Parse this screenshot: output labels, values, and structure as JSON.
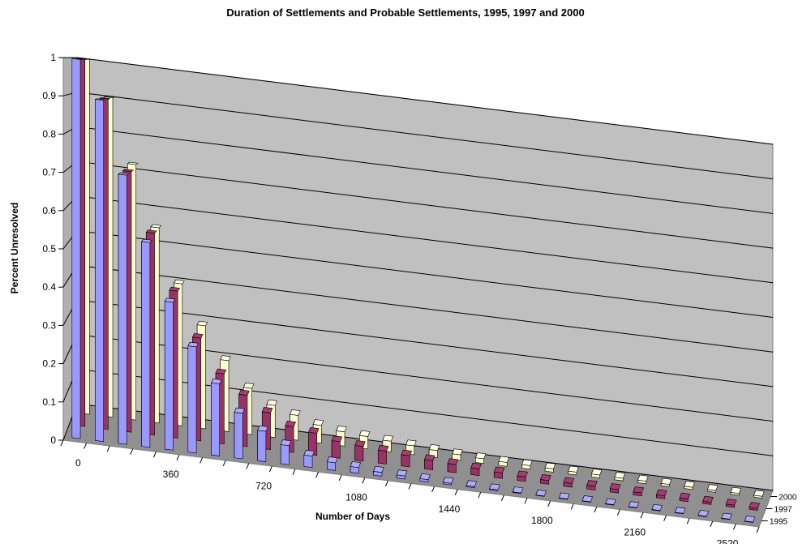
{
  "chart_data": {
    "type": "bar",
    "title": "Duration of Settlements and Probable Settlements, 1995, 1997 and 2000",
    "xlabel": "Number of Days",
    "ylabel": "Percent Unresolved",
    "ylim": [
      0,
      1
    ],
    "y_ticks": [
      "0",
      "0.1",
      "0.2",
      "0.3",
      "0.4",
      "0.5",
      "0.6",
      "0.7",
      "0.8",
      "0.9",
      "1"
    ],
    "x_tick_labels": [
      "0",
      "360",
      "720",
      "1080",
      "1440",
      "1800",
      "2160",
      "2520"
    ],
    "x_tick_every": 4,
    "x": [
      0,
      90,
      180,
      270,
      360,
      450,
      540,
      630,
      720,
      810,
      900,
      990,
      1080,
      1170,
      1260,
      1350,
      1440,
      1530,
      1620,
      1710,
      1800,
      1890,
      1980,
      2070,
      2160,
      2250,
      2340,
      2430,
      2520,
      2610
    ],
    "grid": true,
    "three_d": true,
    "legend": "depth axis, lower-right",
    "series": [
      {
        "name": "1995",
        "color": "#9999ff",
        "values": [
          1.0,
          0.9,
          0.71,
          0.54,
          0.39,
          0.28,
          0.19,
          0.12,
          0.08,
          0.05,
          0.03,
          0.02,
          0.015,
          0.01,
          0.008,
          0.006,
          0.004,
          0.003,
          0.002,
          0.0015,
          0.001,
          0.001,
          0.001,
          0.001,
          0.001,
          0.001,
          0.001,
          0.001,
          0.001,
          0.001
        ]
      },
      {
        "name": "1997",
        "color": "#993366",
        "values": [
          1.0,
          0.9,
          0.71,
          0.55,
          0.4,
          0.28,
          0.19,
          0.14,
          0.1,
          0.07,
          0.06,
          0.045,
          0.04,
          0.035,
          0.03,
          0.025,
          0.022,
          0.018,
          0.015,
          0.012,
          0.01,
          0.01,
          0.01,
          0.009,
          0.008,
          0.008,
          0.007,
          0.006,
          0.006,
          0.005
        ]
      },
      {
        "name": "2000",
        "color": "#ffffcc",
        "values": [
          1.0,
          0.9,
          0.72,
          0.55,
          0.4,
          0.29,
          0.2,
          0.13,
          0.09,
          0.07,
          0.05,
          0.04,
          0.035,
          0.03,
          0.025,
          0.02,
          0.016,
          0.013,
          0.011,
          0.01,
          0.009,
          0.008,
          0.008,
          0.007,
          0.007,
          0.006,
          0.006,
          0.005,
          0.005,
          0.005
        ]
      }
    ]
  }
}
